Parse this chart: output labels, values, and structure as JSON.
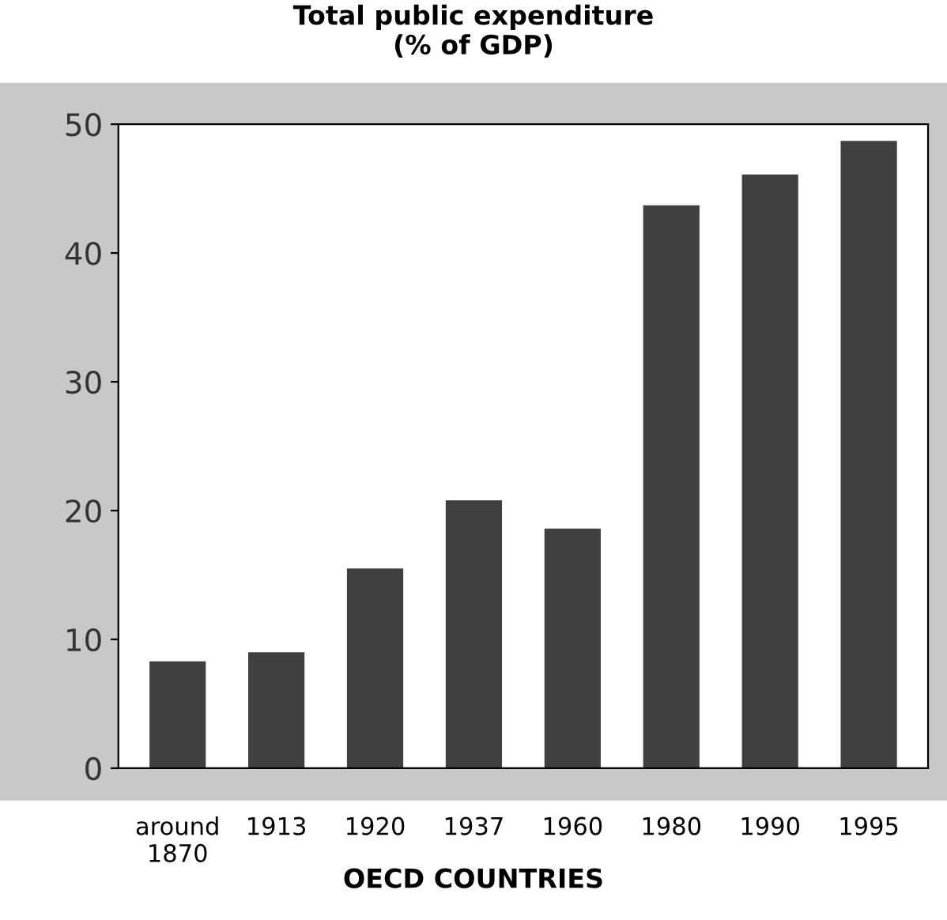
{
  "chart_data": {
    "type": "bar",
    "title": "Total public expenditure\n(% of GDP)",
    "xlabel": "OECD COUNTRIES",
    "categories": [
      "around\n1870",
      "1913",
      "1920",
      "1937",
      "1960",
      "1980",
      "1990",
      "1995"
    ],
    "values": [
      8.3,
      9.0,
      15.5,
      20.8,
      18.6,
      43.7,
      46.1,
      48.7
    ],
    "color": "#404040",
    "ylim": [
      0,
      50
    ],
    "yticks": [
      0,
      10,
      20,
      30,
      40,
      50
    ],
    "grid": false
  }
}
